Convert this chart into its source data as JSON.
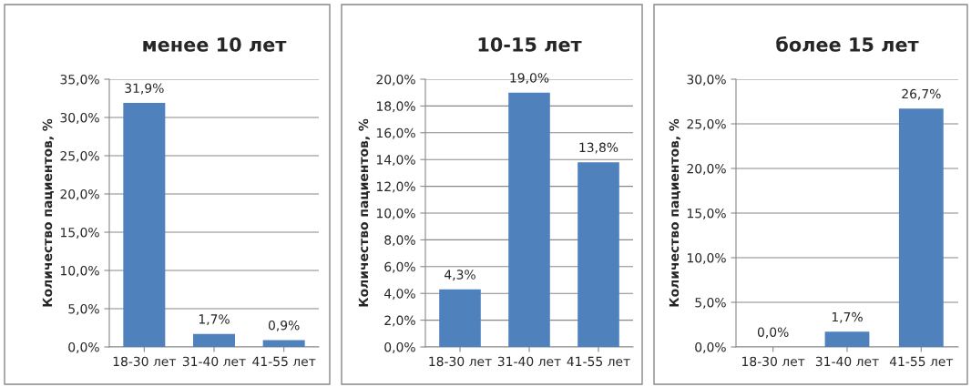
{
  "chart_data": [
    {
      "type": "bar",
      "title": "менее 10 лет",
      "ylabel": "Количество пациентов, %",
      "categories": [
        "18-30 лет",
        "31-40 лет",
        "41-55 лет"
      ],
      "color": "#4f81bd",
      "values": [
        31.9,
        1.7,
        0.9
      ],
      "value_labels": [
        "31,9%",
        "1,7%",
        "0,9%"
      ],
      "ylim": [
        0,
        35
      ],
      "yticks": [
        {
          "value": 0,
          "label": "0,0%"
        },
        {
          "value": 5,
          "label": "5,0%"
        },
        {
          "value": 10,
          "label": "10,0%"
        },
        {
          "value": 15,
          "label": "15,0%"
        },
        {
          "value": 20,
          "label": "20,0%"
        },
        {
          "value": 25,
          "label": "25,0%"
        },
        {
          "value": 30,
          "label": "30,0%"
        },
        {
          "value": 35,
          "label": "35,0%"
        }
      ],
      "grid": "y"
    },
    {
      "type": "bar",
      "title": "10-15 лет",
      "ylabel": "Количество пациентов, %",
      "categories": [
        "18-30 лет",
        "31-40 лет",
        "41-55 лет"
      ],
      "color": "#4f81bd",
      "values": [
        4.3,
        19.0,
        13.8
      ],
      "value_labels": [
        "4,3%",
        "19,0%",
        "13,8%"
      ],
      "ylim": [
        0,
        20
      ],
      "yticks": [
        {
          "value": 0,
          "label": "0,0%"
        },
        {
          "value": 2,
          "label": "2,0%"
        },
        {
          "value": 4,
          "label": "4,0%"
        },
        {
          "value": 6,
          "label": "6,0%"
        },
        {
          "value": 8,
          "label": "8,0%"
        },
        {
          "value": 10,
          "label": "10,0%"
        },
        {
          "value": 12,
          "label": "12,0%"
        },
        {
          "value": 14,
          "label": "14,0%"
        },
        {
          "value": 16,
          "label": "16,0%"
        },
        {
          "value": 18,
          "label": "18,0%"
        },
        {
          "value": 20,
          "label": "20,0%"
        }
      ],
      "grid": "y"
    },
    {
      "type": "bar",
      "title": "более 15 лет",
      "ylabel": "Количество пациентов, %",
      "categories": [
        "18-30 лет",
        "31-40 лет",
        "41-55 лет"
      ],
      "color": "#4f81bd",
      "values": [
        0.0,
        1.7,
        26.7
      ],
      "value_labels": [
        "0,0%",
        "1,7%",
        "26,7%"
      ],
      "ylim": [
        0,
        30
      ],
      "yticks": [
        {
          "value": 0,
          "label": "0,0%"
        },
        {
          "value": 5,
          "label": "5,0%"
        },
        {
          "value": 10,
          "label": "10,0%"
        },
        {
          "value": 15,
          "label": "15,0%"
        },
        {
          "value": 20,
          "label": "20,0%"
        },
        {
          "value": 25,
          "label": "25,0%"
        },
        {
          "value": 30,
          "label": "30,0%"
        }
      ],
      "grid": "y"
    }
  ]
}
